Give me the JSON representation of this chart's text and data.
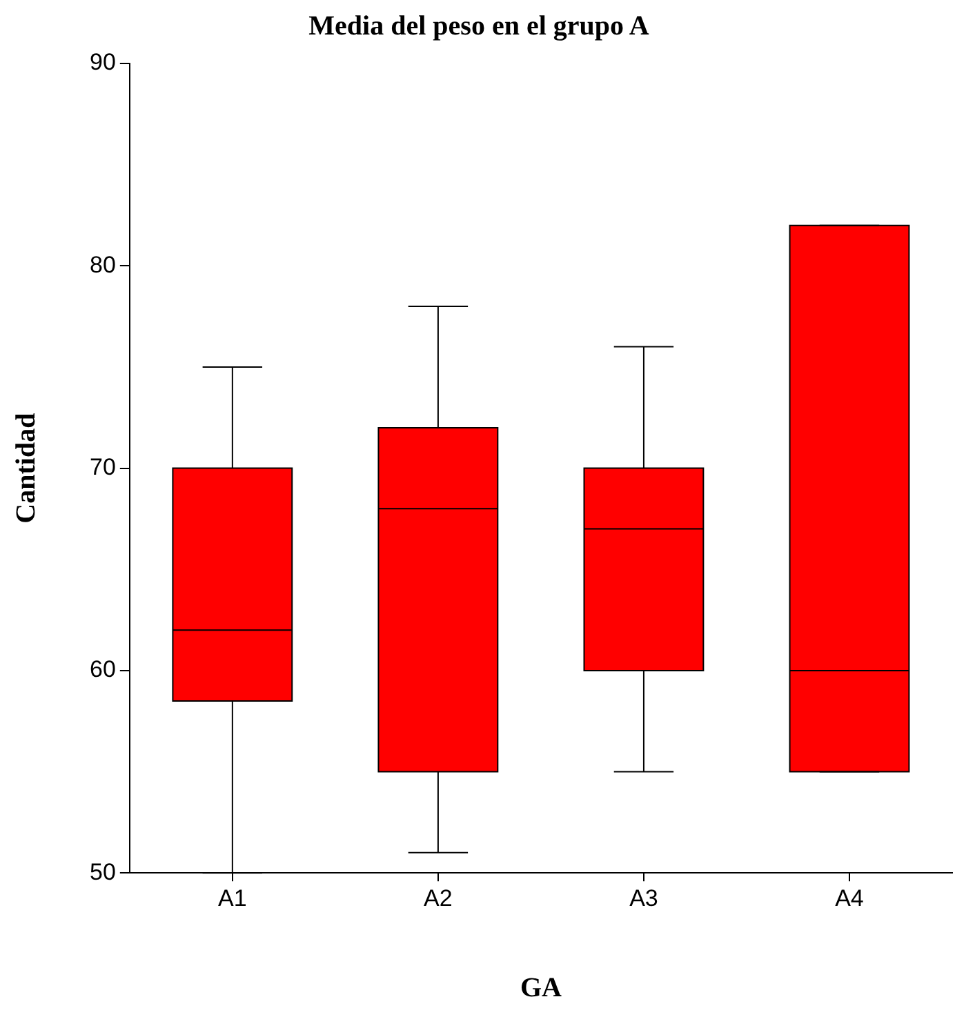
{
  "chart_data": {
    "type": "box",
    "title": "Media del peso en el grupo A",
    "xlabel": "GA",
    "ylabel": "Cantidad",
    "categories": [
      "A1",
      "A2",
      "A3",
      "A4"
    ],
    "color": "#ff0000",
    "boxes": [
      {
        "low": 50,
        "q1": 58.5,
        "median": 62,
        "q3": 70,
        "high": 75
      },
      {
        "low": 51,
        "q1": 55,
        "median": 68,
        "q3": 72,
        "high": 78
      },
      {
        "low": 55,
        "q1": 60,
        "median": 67,
        "q3": 70,
        "high": 76
      },
      {
        "low": 55,
        "q1": 55,
        "median": 60,
        "q3": 82,
        "high": 82
      }
    ],
    "ylim": [
      50,
      90
    ],
    "yticks": [
      50,
      60,
      70,
      80,
      90
    ]
  }
}
